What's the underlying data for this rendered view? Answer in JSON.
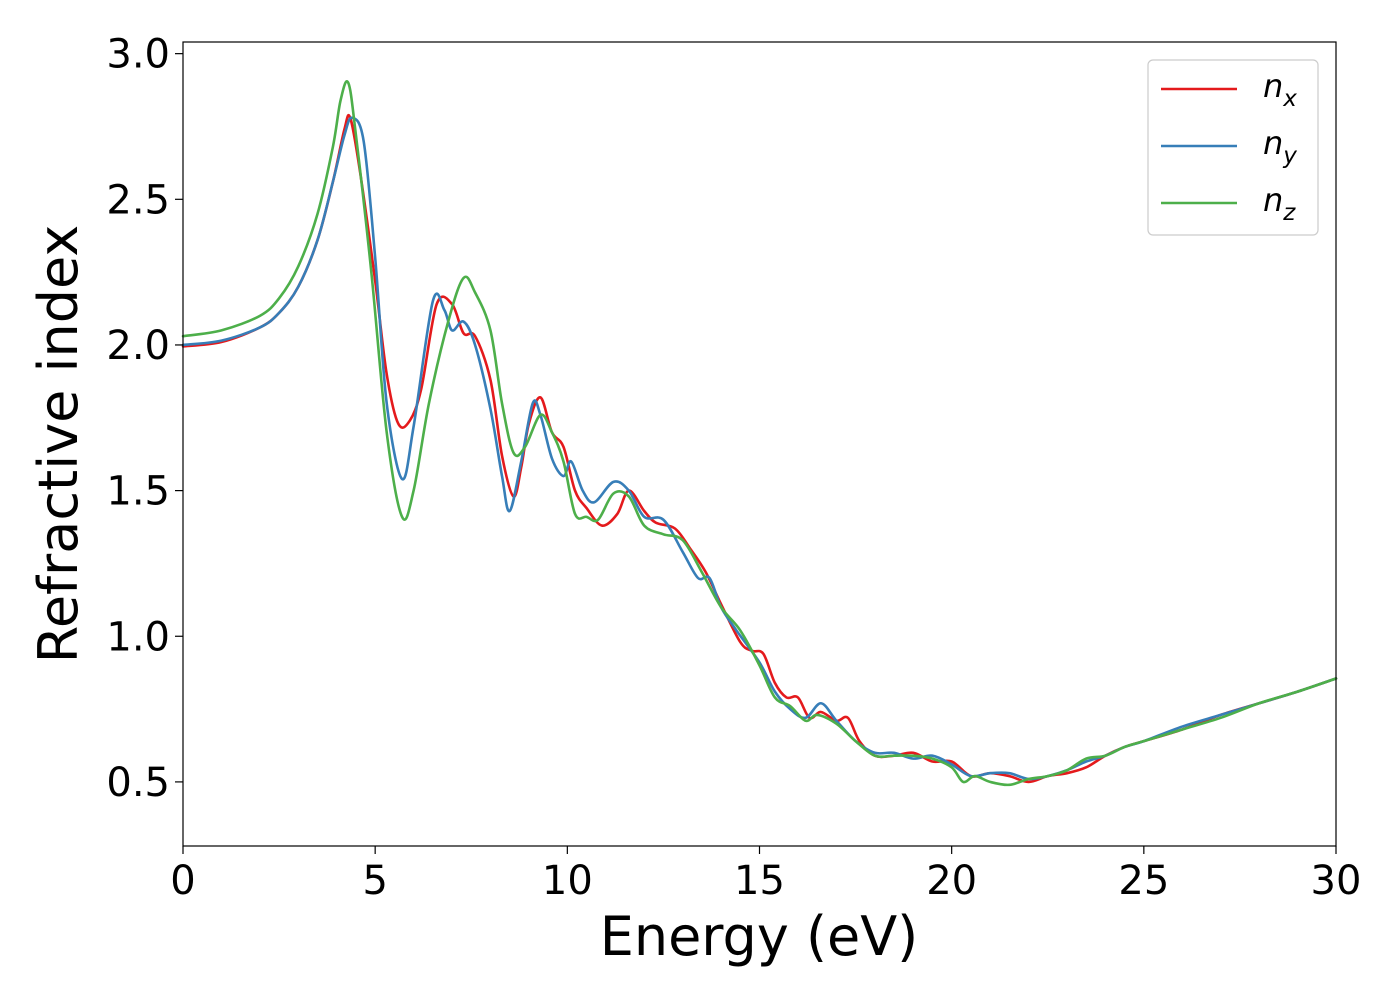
{
  "chart_data": {
    "type": "line",
    "title": "",
    "xlabel": "Energy (eV)",
    "ylabel": "Refractive index",
    "xlim": [
      0,
      30
    ],
    "ylim": [
      0.28,
      3.04
    ],
    "xticks": [
      0,
      5,
      10,
      15,
      20,
      25,
      30
    ],
    "xtick_labels": [
      "0",
      "5",
      "10",
      "15",
      "20",
      "25",
      "30"
    ],
    "yticks": [
      0.5,
      1.0,
      1.5,
      2.0,
      2.5,
      3.0
    ],
    "ytick_labels": [
      "0.5",
      "1.0",
      "1.5",
      "2.0",
      "2.5",
      "3.0"
    ],
    "grid": false,
    "legend_position": "top-right",
    "series": [
      {
        "name": "n",
        "subscript": "x",
        "color": "#e41a1c",
        "points": [
          [
            0,
            1.995
          ],
          [
            1,
            2.01
          ],
          [
            2,
            2.06
          ],
          [
            2.5,
            2.11
          ],
          [
            3,
            2.2
          ],
          [
            3.5,
            2.36
          ],
          [
            3.9,
            2.56
          ],
          [
            4.2,
            2.74
          ],
          [
            4.35,
            2.78
          ],
          [
            4.6,
            2.6
          ],
          [
            5.0,
            2.22
          ],
          [
            5.3,
            1.9
          ],
          [
            5.6,
            1.73
          ],
          [
            5.9,
            1.74
          ],
          [
            6.2,
            1.85
          ],
          [
            6.6,
            2.14
          ],
          [
            7.0,
            2.14
          ],
          [
            7.3,
            2.04
          ],
          [
            7.6,
            2.03
          ],
          [
            8.0,
            1.88
          ],
          [
            8.3,
            1.62
          ],
          [
            8.6,
            1.48
          ],
          [
            8.8,
            1.58
          ],
          [
            9.0,
            1.73
          ],
          [
            9.3,
            1.82
          ],
          [
            9.6,
            1.7
          ],
          [
            9.9,
            1.65
          ],
          [
            10.2,
            1.5
          ],
          [
            10.5,
            1.44
          ],
          [
            10.9,
            1.38
          ],
          [
            11.3,
            1.42
          ],
          [
            11.6,
            1.5
          ],
          [
            12.0,
            1.43
          ],
          [
            12.3,
            1.39
          ],
          [
            12.8,
            1.37
          ],
          [
            13.2,
            1.3
          ],
          [
            13.6,
            1.22
          ],
          [
            14.0,
            1.11
          ],
          [
            14.5,
            0.98
          ],
          [
            14.8,
            0.95
          ],
          [
            15.1,
            0.94
          ],
          [
            15.4,
            0.84
          ],
          [
            15.7,
            0.79
          ],
          [
            16.0,
            0.79
          ],
          [
            16.3,
            0.72
          ],
          [
            16.6,
            0.74
          ],
          [
            17.0,
            0.71
          ],
          [
            17.3,
            0.72
          ],
          [
            17.6,
            0.64
          ],
          [
            18.0,
            0.59
          ],
          [
            18.5,
            0.59
          ],
          [
            19.0,
            0.6
          ],
          [
            19.5,
            0.57
          ],
          [
            20.0,
            0.57
          ],
          [
            20.5,
            0.52
          ],
          [
            21.0,
            0.53
          ],
          [
            21.5,
            0.52
          ],
          [
            22.0,
            0.5
          ],
          [
            22.5,
            0.52
          ],
          [
            23.0,
            0.53
          ],
          [
            23.5,
            0.55
          ],
          [
            24.0,
            0.59
          ],
          [
            24.5,
            0.62
          ],
          [
            25.0,
            0.64
          ],
          [
            26.0,
            0.68
          ],
          [
            27.0,
            0.73
          ],
          [
            28.0,
            0.77
          ],
          [
            29.0,
            0.81
          ],
          [
            30.0,
            0.855
          ]
        ]
      },
      {
        "name": "n",
        "subscript": "y",
        "color": "#377eb8",
        "points": [
          [
            0,
            2.0
          ],
          [
            1,
            2.015
          ],
          [
            2,
            2.06
          ],
          [
            2.5,
            2.11
          ],
          [
            3,
            2.2
          ],
          [
            3.5,
            2.36
          ],
          [
            3.9,
            2.56
          ],
          [
            4.2,
            2.72
          ],
          [
            4.4,
            2.78
          ],
          [
            4.7,
            2.7
          ],
          [
            5.0,
            2.3
          ],
          [
            5.3,
            1.8
          ],
          [
            5.7,
            1.54
          ],
          [
            6.0,
            1.72
          ],
          [
            6.5,
            2.15
          ],
          [
            6.8,
            2.12
          ],
          [
            7.0,
            2.05
          ],
          [
            7.3,
            2.08
          ],
          [
            7.6,
            2.0
          ],
          [
            8.0,
            1.78
          ],
          [
            8.3,
            1.55
          ],
          [
            8.5,
            1.43
          ],
          [
            8.8,
            1.6
          ],
          [
            9.1,
            1.8
          ],
          [
            9.3,
            1.76
          ],
          [
            9.6,
            1.61
          ],
          [
            9.9,
            1.55
          ],
          [
            10.1,
            1.6
          ],
          [
            10.4,
            1.5
          ],
          [
            10.7,
            1.46
          ],
          [
            11.2,
            1.53
          ],
          [
            11.6,
            1.5
          ],
          [
            12.0,
            1.41
          ],
          [
            12.5,
            1.4
          ],
          [
            13.0,
            1.29
          ],
          [
            13.4,
            1.2
          ],
          [
            13.7,
            1.2
          ],
          [
            14.0,
            1.1
          ],
          [
            14.4,
            1.02
          ],
          [
            15.0,
            0.91
          ],
          [
            15.4,
            0.81
          ],
          [
            15.8,
            0.75
          ],
          [
            16.2,
            0.72
          ],
          [
            16.6,
            0.77
          ],
          [
            17.0,
            0.71
          ],
          [
            17.5,
            0.64
          ],
          [
            18.0,
            0.6
          ],
          [
            18.5,
            0.6
          ],
          [
            19.0,
            0.58
          ],
          [
            19.5,
            0.59
          ],
          [
            20.0,
            0.56
          ],
          [
            20.5,
            0.52
          ],
          [
            21.0,
            0.53
          ],
          [
            21.5,
            0.53
          ],
          [
            22.0,
            0.51
          ],
          [
            22.5,
            0.52
          ],
          [
            23.0,
            0.54
          ],
          [
            23.5,
            0.57
          ],
          [
            24.0,
            0.59
          ],
          [
            24.5,
            0.62
          ],
          [
            25.0,
            0.64
          ],
          [
            26.0,
            0.69
          ],
          [
            27.0,
            0.73
          ],
          [
            28.0,
            0.77
          ],
          [
            29.0,
            0.81
          ],
          [
            30.0,
            0.855
          ]
        ]
      },
      {
        "name": "n",
        "subscript": "z",
        "color": "#4daf4a",
        "points": [
          [
            0,
            2.03
          ],
          [
            1,
            2.05
          ],
          [
            2,
            2.1
          ],
          [
            2.5,
            2.16
          ],
          [
            3,
            2.27
          ],
          [
            3.5,
            2.45
          ],
          [
            3.9,
            2.68
          ],
          [
            4.1,
            2.84
          ],
          [
            4.3,
            2.9
          ],
          [
            4.5,
            2.72
          ],
          [
            4.9,
            2.25
          ],
          [
            5.3,
            1.7
          ],
          [
            5.7,
            1.41
          ],
          [
            6.0,
            1.5
          ],
          [
            6.4,
            1.8
          ],
          [
            6.9,
            2.08
          ],
          [
            7.3,
            2.23
          ],
          [
            7.6,
            2.18
          ],
          [
            8.0,
            2.05
          ],
          [
            8.3,
            1.8
          ],
          [
            8.6,
            1.63
          ],
          [
            8.9,
            1.65
          ],
          [
            9.3,
            1.76
          ],
          [
            9.6,
            1.7
          ],
          [
            9.9,
            1.6
          ],
          [
            10.2,
            1.42
          ],
          [
            10.5,
            1.41
          ],
          [
            10.8,
            1.4
          ],
          [
            11.2,
            1.49
          ],
          [
            11.6,
            1.48
          ],
          [
            12.0,
            1.38
          ],
          [
            12.5,
            1.35
          ],
          [
            13.0,
            1.33
          ],
          [
            13.5,
            1.22
          ],
          [
            14.0,
            1.1
          ],
          [
            14.5,
            1.02
          ],
          [
            15.0,
            0.9
          ],
          [
            15.4,
            0.79
          ],
          [
            15.8,
            0.76
          ],
          [
            16.2,
            0.71
          ],
          [
            16.5,
            0.73
          ],
          [
            17.0,
            0.7
          ],
          [
            17.5,
            0.64
          ],
          [
            18.0,
            0.59
          ],
          [
            18.5,
            0.59
          ],
          [
            19.0,
            0.59
          ],
          [
            19.5,
            0.58
          ],
          [
            20.0,
            0.55
          ],
          [
            20.3,
            0.5
          ],
          [
            20.6,
            0.52
          ],
          [
            21.0,
            0.5
          ],
          [
            21.5,
            0.49
          ],
          [
            22.0,
            0.51
          ],
          [
            22.5,
            0.52
          ],
          [
            23.0,
            0.54
          ],
          [
            23.5,
            0.58
          ],
          [
            24.0,
            0.59
          ],
          [
            24.5,
            0.62
          ],
          [
            25.0,
            0.64
          ],
          [
            26.0,
            0.68
          ],
          [
            27.0,
            0.72
          ],
          [
            28.0,
            0.77
          ],
          [
            29.0,
            0.81
          ],
          [
            30.0,
            0.855
          ]
        ]
      }
    ]
  }
}
